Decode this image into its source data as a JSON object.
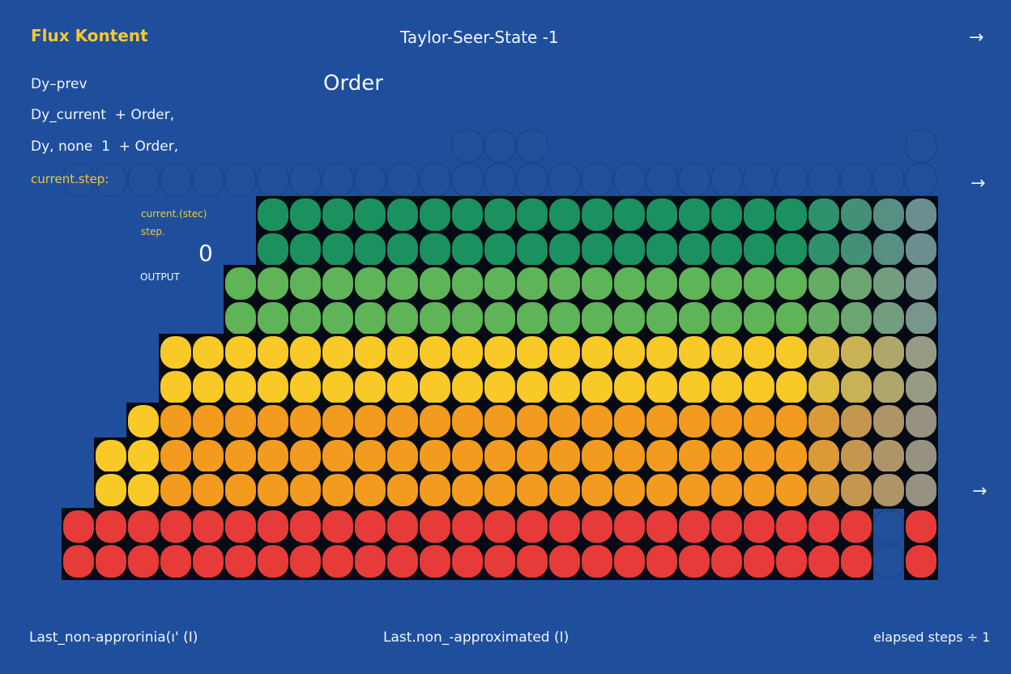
{
  "brand": "Flux Kontent",
  "title": "Taylor-Seer-State -1",
  "order_label": "Order",
  "left_lines": [
    "Dy–prev",
    "Dy_current  + Order,",
    "Dy, none  1  + Order,"
  ],
  "current_step_label": "current.step:",
  "inner_label_1": "current.(stec)",
  "inner_label_2": "step.",
  "zero_value": "0",
  "output_label": "OUTPUT",
  "footer": {
    "left": "Last_non-approrinia(ı' (Ι)",
    "center": "Last.non_-approximated (Ι)",
    "right": "elapsed steps ÷ 1"
  },
  "arrows": [
    "arrow-right-icon",
    "arrow-right-icon",
    "arrow-right-icon"
  ],
  "colors": {
    "background": "#1f4f9c",
    "G": "#1b9160",
    "L": "#5fb457",
    "Y": "#f8c927",
    "O": "#f29b1f",
    "R": "#e63b38",
    "b": "#22509a",
    "fade": "#7f8f9a"
  },
  "grid_rows": [
    "............bbb...........b",
    "bbbbbbbbbbbbbbbbbbbbbbbbbbb",
    "......GGGGGGGGGGGGGGGGGGGGG",
    "......GGGGGGGGGGGGGGGGGGGGG",
    ".....LLLLLLLLLLLLLLLLLLLLLL",
    ".....LLLLLLLLLLLLLLLLLLLLLL",
    "...YYYYYYYYYYYYYYYYYYYYYYYY",
    "...YYYYYYYYYYYYYYYYYYYYYYYY",
    "..YOOOOOOOOOOOOOOOOOOOOOOOO",
    ".YYOOOOOOOOOOOOOOOOOOOOOOOO",
    ".YYOOOOOOOOOOOOOOOOOOOOOOOO",
    "RRRRRRRRRRRRRRRRRRRRRRRRRbR",
    "RRRRRRRRRRRRRRRRRRRRRRRRRbR"
  ]
}
